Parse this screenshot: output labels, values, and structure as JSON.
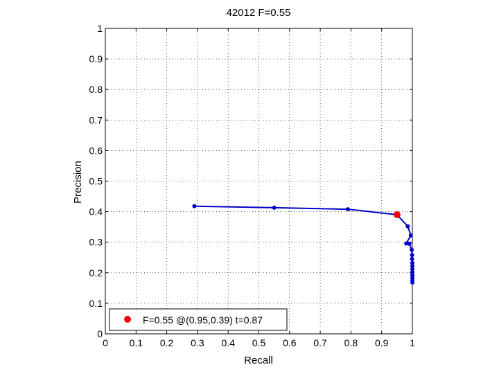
{
  "chart_data": {
    "type": "line",
    "title": "42012 F=0.55",
    "xlabel": "Recall",
    "ylabel": "Precision",
    "xlim": [
      0,
      1
    ],
    "ylim": [
      0,
      1
    ],
    "x_ticks": [
      "0",
      "0.1",
      "0.2",
      "0.3",
      "0.4",
      "0.5",
      "0.6",
      "0.7",
      "0.8",
      "0.9",
      "1"
    ],
    "y_ticks": [
      "0",
      "0.1",
      "0.2",
      "0.3",
      "0.4",
      "0.5",
      "0.6",
      "0.7",
      "0.8",
      "0.9",
      "1"
    ],
    "grid": true,
    "legend_position": "bottom-left",
    "series": [
      {
        "color": "#0000c8",
        "points": [
          [
            0.29,
            0.418
          ],
          [
            0.55,
            0.413
          ],
          [
            0.79,
            0.408
          ],
          [
            0.95,
            0.39
          ],
          [
            0.985,
            0.352
          ],
          [
            0.995,
            0.322
          ],
          [
            0.98,
            0.296
          ],
          [
            0.99,
            0.295
          ],
          [
            0.998,
            0.275
          ],
          [
            0.999,
            0.258
          ],
          [
            0.999,
            0.245
          ],
          [
            1.0,
            0.232
          ],
          [
            1.0,
            0.222
          ],
          [
            1.0,
            0.212
          ],
          [
            1.0,
            0.202
          ],
          [
            1.0,
            0.192
          ],
          [
            1.0,
            0.183
          ],
          [
            1.0,
            0.175
          ],
          [
            1.0,
            0.168
          ]
        ]
      }
    ],
    "highlight": {
      "label": "F=0.55 @(0.95,0.39) t=0.87",
      "x": 0.95,
      "y": 0.39,
      "color": "#ee0000"
    }
  }
}
